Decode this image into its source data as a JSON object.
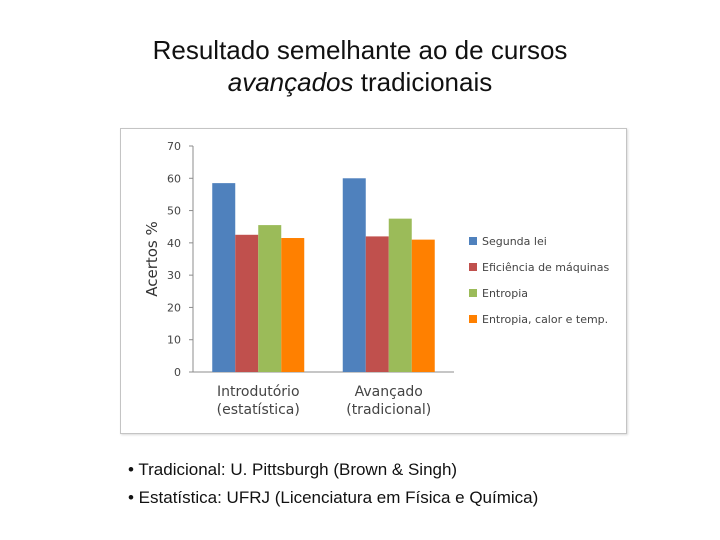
{
  "slide": {
    "title_line1": "Resultado semelhante ao de cursos",
    "title_line2_italic": "avançados",
    "title_line2_rest": " tradicionais"
  },
  "chart_data": {
    "type": "bar",
    "ylabel": "Acertos %",
    "ylim": [
      0,
      70
    ],
    "yticks": [
      0,
      10,
      20,
      30,
      40,
      50,
      60,
      70
    ],
    "categories": [
      [
        "Introdutório",
        "(estatística)"
      ],
      [
        "Avançado",
        "(tradicional)"
      ]
    ],
    "series": [
      {
        "name": "Segunda lei",
        "values": [
          58.5,
          60
        ],
        "color": "#4f81bd"
      },
      {
        "name": "Eficiência de máquinas",
        "values": [
          42.5,
          42
        ],
        "color": "#c0504d"
      },
      {
        "name": "Entropia",
        "values": [
          45.5,
          47.5
        ],
        "color": "#9bbb59"
      },
      {
        "name": "Entropia, calor e temp.",
        "values": [
          41.5,
          41
        ],
        "color": "#ff8000"
      }
    ],
    "grid": false,
    "legend_position": "right"
  },
  "notes": [
    "• Tradicional:  U. Pittsburgh (Brown & Singh)",
    "• Estatística: UFRJ (Licenciatura em Física e Química)"
  ]
}
